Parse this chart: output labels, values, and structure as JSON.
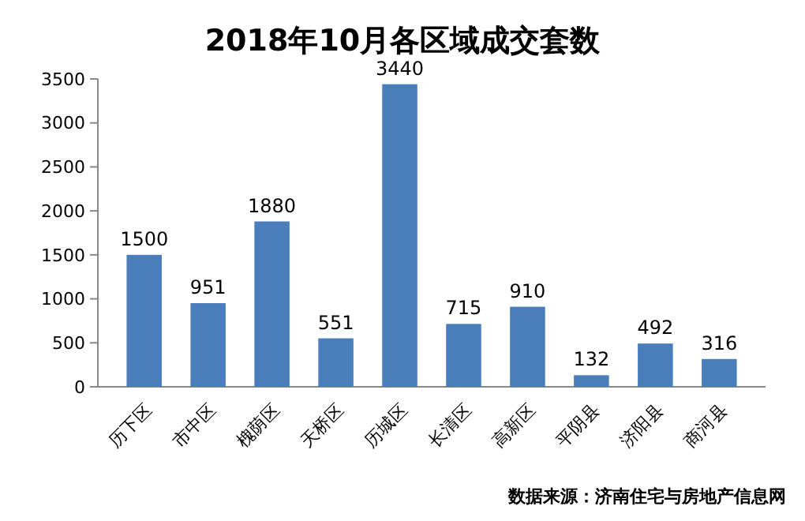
{
  "chart_data": {
    "type": "bar",
    "title": "2018年10月各区域成交套数",
    "categories": [
      "历下区",
      "市中区",
      "槐荫区",
      "天桥区",
      "历城区",
      "长清区",
      "高新区",
      "平阴县",
      "济阳县",
      "商河县"
    ],
    "values": [
      1500,
      951,
      1880,
      551,
      3440,
      715,
      910,
      132,
      492,
      316
    ],
    "color": "#4a7ebb",
    "ylim": [
      0,
      3500
    ],
    "yticks": [
      0,
      500,
      1000,
      1500,
      2000,
      2500,
      3000,
      3500
    ],
    "data_labels": true,
    "annotations": [
      "数据来源：济南住宅与房地产信息网"
    ]
  }
}
